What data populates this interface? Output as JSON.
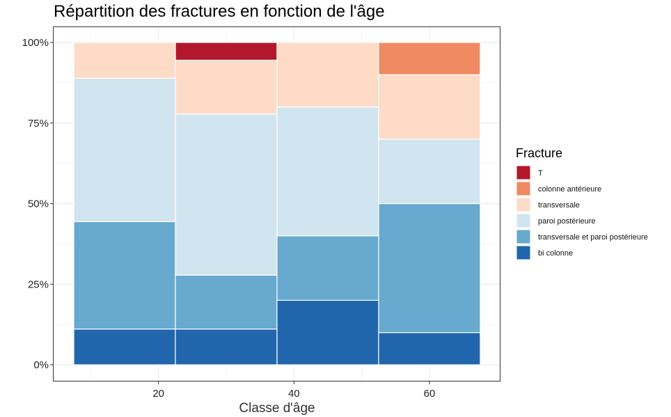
{
  "chart_data": {
    "type": "bar",
    "stacked": "percent",
    "title": "Répartition des fractures en fonction de l'âge",
    "xlabel": "Classe d'âge",
    "ylabel": "",
    "x_ticks": [
      "20",
      "40",
      "60"
    ],
    "y_ticks": [
      "0%",
      "25%",
      "50%",
      "75%",
      "100%"
    ],
    "ylim": [
      0,
      1
    ],
    "grid": true,
    "categories": [
      15,
      30,
      45,
      60
    ],
    "legend": {
      "title": "Fracture",
      "placement": "right",
      "entries": [
        "T",
        "colonne antérieure",
        "transversale",
        "paroi postérieure",
        "transversale et paroi postérieure",
        "bi colonne"
      ]
    },
    "series": [
      {
        "name": "bi colonne",
        "color": "#2166ac",
        "values": [
          0.111,
          0.111,
          0.2,
          0.1
        ]
      },
      {
        "name": "transversale et paroi postérieure",
        "color": "#67a9cf",
        "values": [
          0.333,
          0.167,
          0.2,
          0.4
        ]
      },
      {
        "name": "paroi postérieure",
        "color": "#d1e5f0",
        "values": [
          0.445,
          0.5,
          0.4,
          0.2
        ]
      },
      {
        "name": "transversale",
        "color": "#fddbc7",
        "values": [
          0.111,
          0.167,
          0.2,
          0.2
        ]
      },
      {
        "name": "colonne antérieure",
        "color": "#ef8a62",
        "values": [
          0,
          0,
          0,
          0.1
        ]
      },
      {
        "name": "T",
        "color": "#b2182b",
        "values": [
          0,
          0.055,
          0,
          0
        ]
      }
    ]
  }
}
